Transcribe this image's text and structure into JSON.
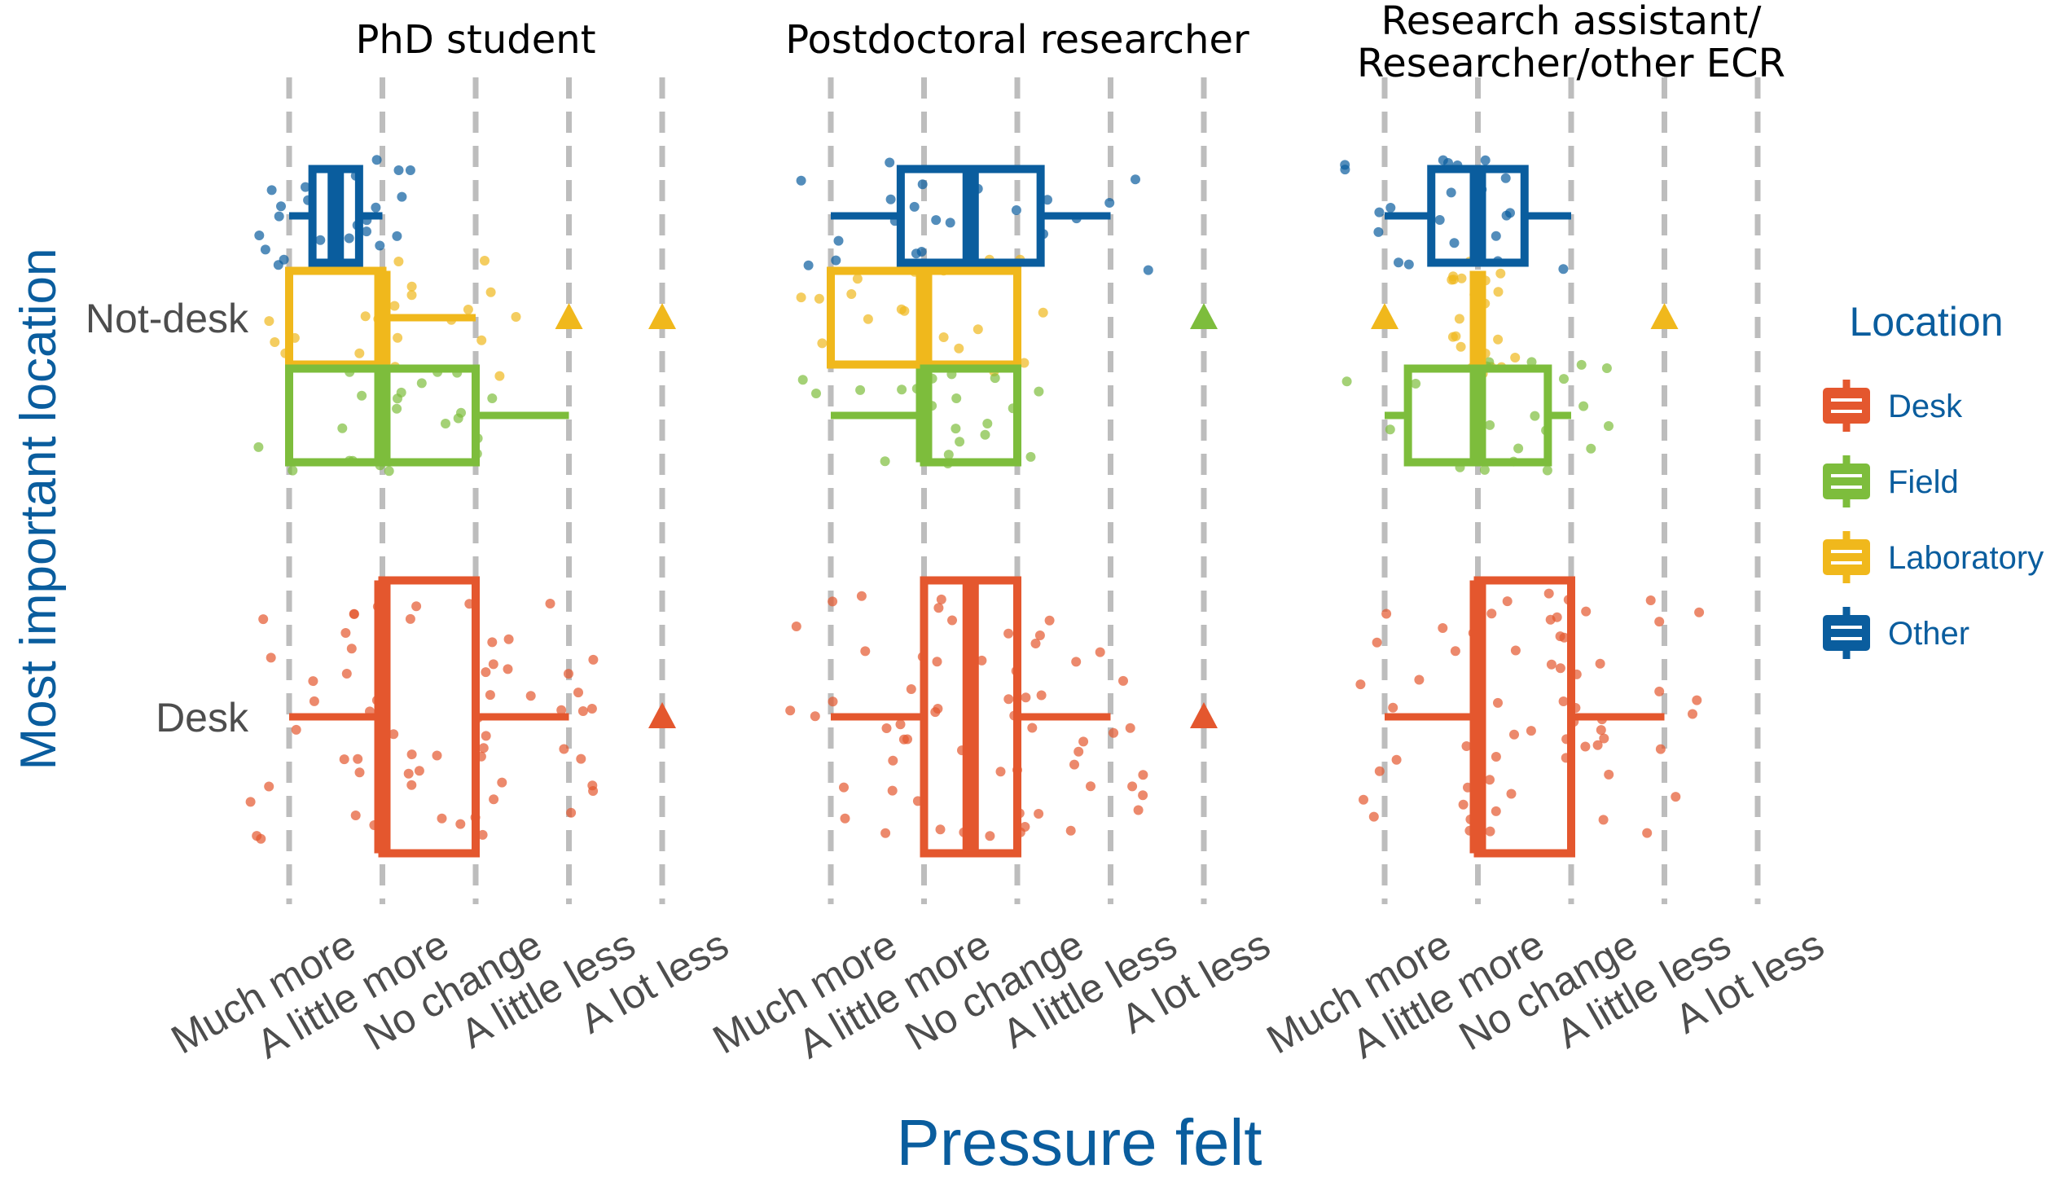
{
  "chart_data": {
    "type": "box",
    "title": "",
    "x_axis_label": "Pressure felt",
    "y_axis_label": "Most important location",
    "x_categories": [
      "Much more",
      "A little more",
      "No change",
      "A little less",
      "A lot less"
    ],
    "y_categories": [
      "Not-desk",
      "Desk"
    ],
    "legend": {
      "title": "Location",
      "position": "right",
      "items": [
        {
          "name": "Desk",
          "color": "#e4572e"
        },
        {
          "name": "Field",
          "color": "#7dbd3c"
        },
        {
          "name": "Laboratory",
          "color": "#f0b81c"
        },
        {
          "name": "Other",
          "color": "#0a5d9e"
        }
      ]
    },
    "panels": [
      {
        "title": "PhD student",
        "boxes": [
          {
            "location": "Other",
            "row": "Not-desk",
            "whisker_low": 1,
            "q1": 1.25,
            "median": 1.5,
            "q3": 1.75,
            "whisker_high": 2,
            "outliers": []
          },
          {
            "location": "Laboratory",
            "row": "Not-desk",
            "whisker_low": 1,
            "q1": 1,
            "median": 2,
            "q3": 2,
            "whisker_high": 3,
            "outliers": [
              4,
              5
            ]
          },
          {
            "location": "Field",
            "row": "Not-desk",
            "whisker_low": 1,
            "q1": 1,
            "median": 2,
            "q3": 3,
            "whisker_high": 4,
            "outliers": []
          },
          {
            "location": "Desk",
            "row": "Desk",
            "whisker_low": 1,
            "q1": 2,
            "median": 2,
            "q3": 3,
            "whisker_high": 4,
            "outliers": [
              5
            ]
          }
        ],
        "triangles": [
          {
            "location": "Laboratory",
            "row": "Not-desk",
            "x": 4
          },
          {
            "location": "Laboratory",
            "row": "Not-desk",
            "x": 5
          },
          {
            "location": "Desk",
            "row": "Desk",
            "x": 5
          }
        ]
      },
      {
        "title": "Postdoctoral researcher",
        "boxes": [
          {
            "location": "Other",
            "row": "Not-desk",
            "whisker_low": 1,
            "q1": 1.75,
            "median": 2.5,
            "q3": 3.25,
            "whisker_high": 4,
            "outliers": []
          },
          {
            "location": "Laboratory",
            "row": "Not-desk",
            "whisker_low": 1,
            "q1": 1,
            "median": 2,
            "q3": 3,
            "whisker_high": 3,
            "outliers": []
          },
          {
            "location": "Field",
            "row": "Not-desk",
            "whisker_low": 1,
            "q1": 2,
            "median": 2,
            "q3": 3,
            "whisker_high": 3,
            "outliers": [
              5
            ]
          },
          {
            "location": "Desk",
            "row": "Desk",
            "whisker_low": 1,
            "q1": 2,
            "median": 2.5,
            "q3": 3,
            "whisker_high": 4,
            "outliers": [
              5
            ]
          }
        ],
        "triangles": [
          {
            "location": "Field",
            "row": "Not-desk",
            "x": 5
          },
          {
            "location": "Desk",
            "row": "Desk",
            "x": 5
          }
        ]
      },
      {
        "title": "Research assistant/\nResearcher/other ECR",
        "boxes": [
          {
            "location": "Other",
            "row": "Not-desk",
            "whisker_low": 1,
            "q1": 1.5,
            "median": 2,
            "q3": 2.5,
            "whisker_high": 3,
            "outliers": []
          },
          {
            "location": "Laboratory",
            "row": "Not-desk",
            "whisker_low": 2,
            "q1": 2,
            "median": 2,
            "q3": 2,
            "whisker_high": 2,
            "outliers": [
              1,
              4
            ]
          },
          {
            "location": "Field",
            "row": "Not-desk",
            "whisker_low": 1,
            "q1": 1.25,
            "median": 2,
            "q3": 2.75,
            "whisker_high": 3,
            "outliers": []
          },
          {
            "location": "Desk",
            "row": "Desk",
            "whisker_low": 1,
            "q1": 2,
            "median": 2,
            "q3": 3,
            "whisker_high": 4,
            "outliers": []
          }
        ],
        "triangles": [
          {
            "location": "Laboratory",
            "row": "Not-desk",
            "x": 1
          },
          {
            "location": "Laboratory",
            "row": "Not-desk",
            "x": 4
          }
        ]
      }
    ]
  }
}
